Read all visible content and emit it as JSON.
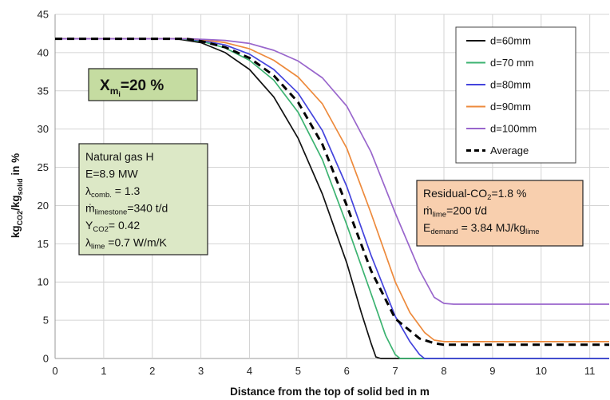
{
  "chart_data": {
    "type": "line",
    "xlabel": "Distance from the top of solid bed in m",
    "ylabel": "kg_CO2/kg_solid in %",
    "ylabel_parts": {
      "a": "kg",
      "a_sub": "CO2",
      "b": "/kg",
      "b_sub": "solid",
      "c": " in %"
    },
    "xlim": [
      0,
      11.4
    ],
    "ylim": [
      0,
      45
    ],
    "x_ticks": [
      "0",
      "1",
      "2",
      "3",
      "4",
      "5",
      "6",
      "7",
      "8",
      "9",
      "10",
      "11"
    ],
    "y_ticks": [
      "0",
      "5",
      "10",
      "15",
      "20",
      "25",
      "30",
      "35",
      "40",
      "45"
    ],
    "grid": true,
    "legend_position": "top-right",
    "series": [
      {
        "name": "d=60mm",
        "color": "#111111",
        "dashed": false,
        "points": [
          [
            0,
            41.8
          ],
          [
            2.5,
            41.8
          ],
          [
            3.0,
            41.3
          ],
          [
            3.5,
            40.0
          ],
          [
            4.0,
            37.8
          ],
          [
            4.5,
            34.2
          ],
          [
            5.0,
            28.8
          ],
          [
            5.5,
            21.5
          ],
          [
            6.0,
            12.5
          ],
          [
            6.3,
            6.0
          ],
          [
            6.5,
            2.0
          ],
          [
            6.6,
            0.2
          ],
          [
            6.7,
            0
          ],
          [
            11.4,
            0
          ]
        ]
      },
      {
        "name": "d=70 mm",
        "color": "#3cb371",
        "dashed": false,
        "points": [
          [
            0,
            41.8
          ],
          [
            2.6,
            41.8
          ],
          [
            3.0,
            41.5
          ],
          [
            3.5,
            40.6
          ],
          [
            4.0,
            39.0
          ],
          [
            4.5,
            36.4
          ],
          [
            5.0,
            32.2
          ],
          [
            5.5,
            26.0
          ],
          [
            6.0,
            17.5
          ],
          [
            6.5,
            8.5
          ],
          [
            6.8,
            3.0
          ],
          [
            7.0,
            0.5
          ],
          [
            7.1,
            0
          ],
          [
            11.4,
            0
          ]
        ]
      },
      {
        "name": "d=80mm",
        "color": "#4444dd",
        "dashed": false,
        "points": [
          [
            0,
            41.8
          ],
          [
            2.7,
            41.8
          ],
          [
            3.0,
            41.6
          ],
          [
            3.5,
            41.0
          ],
          [
            4.0,
            39.8
          ],
          [
            4.5,
            37.8
          ],
          [
            5.0,
            34.7
          ],
          [
            5.5,
            29.8
          ],
          [
            6.0,
            22.5
          ],
          [
            6.5,
            13.5
          ],
          [
            7.0,
            5.5
          ],
          [
            7.3,
            2.2
          ],
          [
            7.5,
            0.5
          ],
          [
            7.6,
            0
          ],
          [
            11.4,
            0
          ]
        ]
      },
      {
        "name": "d=90mm",
        "color": "#ed8a3c",
        "dashed": false,
        "points": [
          [
            0,
            41.8
          ],
          [
            2.8,
            41.8
          ],
          [
            3.0,
            41.7
          ],
          [
            3.5,
            41.3
          ],
          [
            4.0,
            40.5
          ],
          [
            4.5,
            39.0
          ],
          [
            5.0,
            36.8
          ],
          [
            5.5,
            33.3
          ],
          [
            6.0,
            27.5
          ],
          [
            6.5,
            19.0
          ],
          [
            7.0,
            10.0
          ],
          [
            7.3,
            6.0
          ],
          [
            7.6,
            3.4
          ],
          [
            7.8,
            2.4
          ],
          [
            8.0,
            2.2
          ],
          [
            11.4,
            2.2
          ]
        ]
      },
      {
        "name": "d=100mm",
        "color": "#9966cc",
        "dashed": false,
        "points": [
          [
            0,
            41.8
          ],
          [
            2.8,
            41.8
          ],
          [
            3.5,
            41.6
          ],
          [
            4.0,
            41.2
          ],
          [
            4.5,
            40.3
          ],
          [
            5.0,
            38.9
          ],
          [
            5.5,
            36.7
          ],
          [
            6.0,
            33.0
          ],
          [
            6.5,
            27.0
          ],
          [
            7.0,
            19.0
          ],
          [
            7.5,
            11.5
          ],
          [
            7.8,
            8.0
          ],
          [
            8.0,
            7.2
          ],
          [
            8.2,
            7.1
          ],
          [
            11.4,
            7.1
          ]
        ]
      },
      {
        "name": "Average",
        "color": "#000000",
        "dashed": true,
        "points": [
          [
            0,
            41.8
          ],
          [
            2.7,
            41.8
          ],
          [
            3.0,
            41.5
          ],
          [
            3.5,
            40.7
          ],
          [
            4.0,
            39.3
          ],
          [
            4.5,
            37.0
          ],
          [
            5.0,
            33.5
          ],
          [
            5.5,
            28.0
          ],
          [
            6.0,
            20.0
          ],
          [
            6.5,
            11.5
          ],
          [
            7.0,
            5.2
          ],
          [
            7.5,
            2.6
          ],
          [
            7.8,
            2.0
          ],
          [
            8.0,
            1.8
          ],
          [
            11.4,
            1.8
          ]
        ]
      }
    ],
    "annotations": {
      "xmi": {
        "main": "X",
        "sub": "m",
        "subsub": "i",
        "tail": "=20 %",
        "bg": "#c5dca1"
      },
      "green_box": {
        "bg": "#dce8c6",
        "lines": [
          {
            "text": "Natural gas H",
            "sub": "",
            "after": ""
          },
          {
            "text": "E=8.9 MW",
            "sub": "",
            "after": ""
          },
          {
            "text": "λ",
            "sub": "comb.",
            "after": " = 1.3"
          },
          {
            "text": "ṁ",
            "sub": "limestone",
            "after": "=340  t/d"
          },
          {
            "text": "Y",
            "sub": "CO2",
            "after": "=  0.42"
          },
          {
            "text": "λ",
            "sub": "lime",
            "after": " =0.7 W/m/K"
          }
        ]
      },
      "orange_box": {
        "bg": "#f8cfae",
        "lines": [
          {
            "text": "Residual-CO",
            "sub": "2",
            "after": "=1.8  %"
          },
          {
            "text": "ṁ",
            "sub": "lime",
            "after": "=200  t/d"
          },
          {
            "text": "E",
            "sub": "demand",
            "after": " = 3.84 MJ/kg",
            "sub2": "lime"
          }
        ]
      }
    }
  }
}
